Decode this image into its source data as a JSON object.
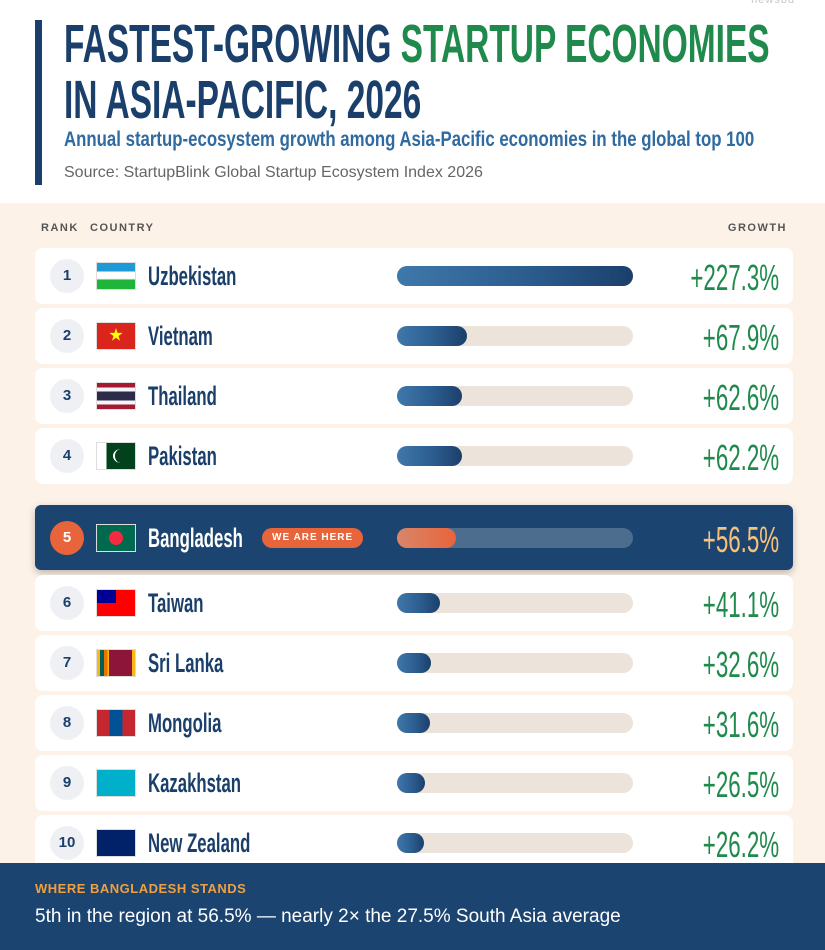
{
  "chart_data": {
    "type": "bar",
    "watermark": "newsbd",
    "title": {
      "before": "FASTEST-GROWING",
      "highlight": "STARTUP ECONOMIES",
      "after": "IN ASIA-PACIFIC, 2026"
    },
    "subtitle": "Annual startup-ecosystem growth among Asia-Pacific economies in the global top 100",
    "source": "Source: StartupBlink Global Startup Ecosystem Index 2026",
    "headers": {
      "rank": "RANK",
      "country": "COUNTRY",
      "growth": "GROWTH"
    },
    "ranks": [
      1,
      2,
      3,
      4,
      5,
      6,
      7,
      8,
      9,
      10
    ],
    "categories": [
      "Uzbekistan",
      "Vietnam",
      "Thailand",
      "Pakistan",
      "Bangladesh",
      "Taiwan",
      "Sri Lanka",
      "Mongolia",
      "Kazakhstan",
      "New Zealand"
    ],
    "values": [
      227.3,
      67.9,
      62.6,
      62.2,
      56.5,
      41.1,
      32.6,
      31.6,
      26.5,
      26.2
    ],
    "value_labels": [
      "+227.3%",
      "+67.9%",
      "+62.6%",
      "+62.2%",
      "+56.5%",
      "+41.1%",
      "+32.6%",
      "+31.6%",
      "+26.5%",
      "+26.2%"
    ],
    "highlight": "Bangladesh",
    "badge": "WE ARE HERE",
    "color": "#2a5a8c",
    "highlight_color": "#e8643a",
    "footer": {
      "heading": "WHERE BANGLADESH STANDS",
      "text": "5th in the region at 56.5% — nearly 2× the 27.5% South Asia average"
    }
  }
}
